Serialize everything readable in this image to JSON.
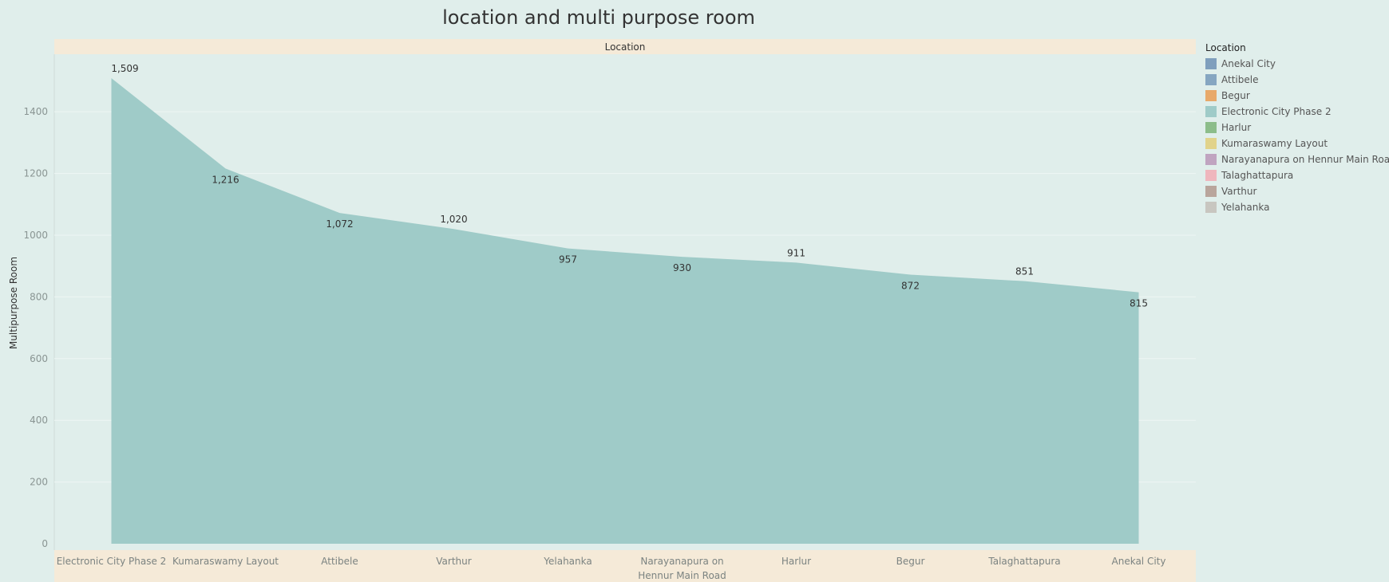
{
  "chart_data": {
    "type": "area",
    "title": "location and multi purpose room",
    "header_label": "Location",
    "ylabel": "Multipurpose Room",
    "ylim": [
      0,
      1509
    ],
    "yticks": [
      0,
      200,
      400,
      600,
      800,
      1000,
      1200,
      1400
    ],
    "categories": [
      [
        "Electronic City Phase 2"
      ],
      [
        "Kumaraswamy Layout"
      ],
      [
        "Attibele"
      ],
      [
        "Varthur"
      ],
      [
        "Yelahanka"
      ],
      [
        "Narayanapura on",
        "Hennur Main Road"
      ],
      [
        "Harlur"
      ],
      [
        "Begur"
      ],
      [
        "Talaghattapura"
      ],
      [
        "Anekal City"
      ]
    ],
    "values": [
      1509,
      1216,
      1072,
      1020,
      957,
      930,
      911,
      872,
      851,
      815
    ],
    "data_labels": [
      "1,509",
      "1,216",
      "1,072",
      "1,020",
      "957",
      "930",
      "911",
      "872",
      "851",
      "815"
    ],
    "label_position": [
      "above",
      "below",
      "below",
      "above",
      "below",
      "below",
      "above",
      "below",
      "above",
      "below"
    ],
    "area_color": "#9fcbc8",
    "legend": {
      "title": "Location",
      "position": "right",
      "items": [
        {
          "label": "Anekal City",
          "color": "#7f9fbd"
        },
        {
          "label": "Attibele",
          "color": "#86a6c1"
        },
        {
          "label": "Begur",
          "color": "#e8a96a"
        },
        {
          "label": "Electronic City Phase 2",
          "color": "#9fcbc8"
        },
        {
          "label": "Harlur",
          "color": "#8cbd8a"
        },
        {
          "label": "Kumaraswamy Layout",
          "color": "#e1d38b"
        },
        {
          "label": "Narayanapura on Hennur Main Road",
          "color": "#c0a4c0"
        },
        {
          "label": "Talaghattapura",
          "color": "#efb6bd"
        },
        {
          "label": "Varthur",
          "color": "#b9a59c"
        },
        {
          "label": "Yelahanka",
          "color": "#c8c6c0"
        }
      ]
    }
  }
}
